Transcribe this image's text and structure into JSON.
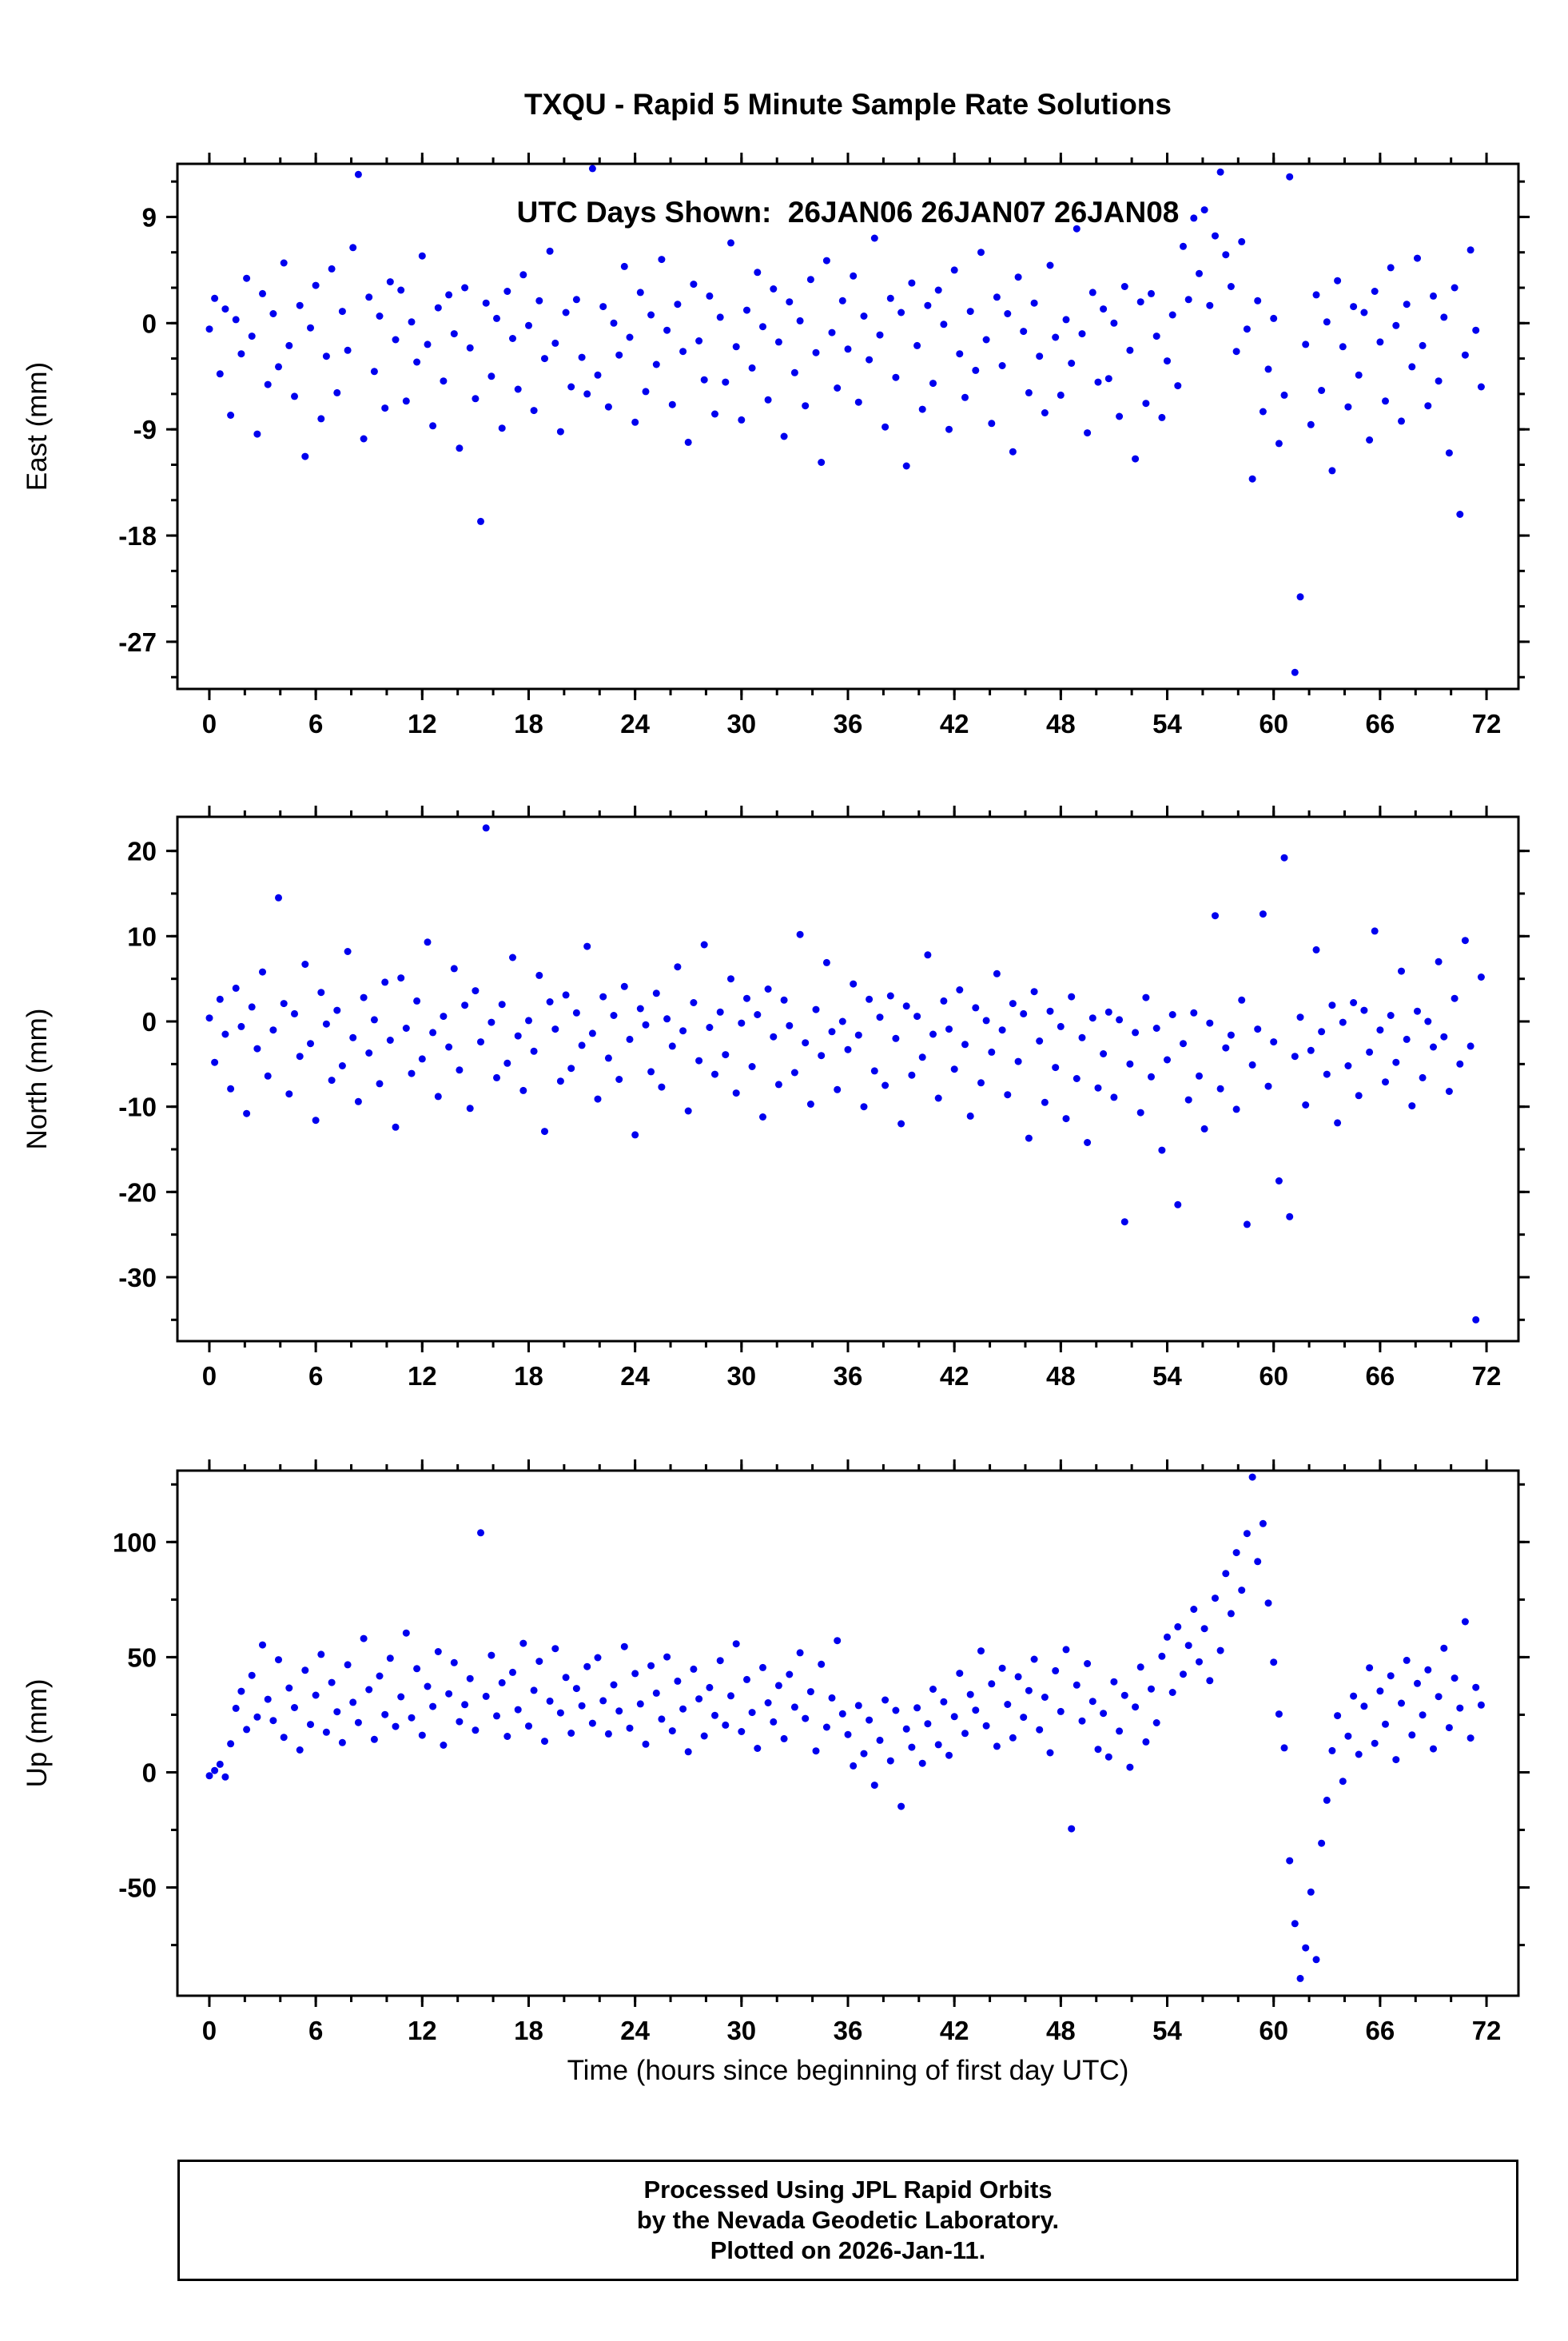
{
  "title": {
    "line1": "TXQU - Rapid 5 Minute Sample Rate Solutions",
    "line2": "UTC Days Shown:  26JAN06 26JAN07 26JAN08"
  },
  "footer": {
    "line1": "Processed Using JPL Rapid Orbits",
    "line2": "by the Nevada Geodetic Laboratory.",
    "line3": "Plotted on 2026-Jan-11."
  },
  "chart_data": {
    "type": "scatter",
    "title": "TXQU - Rapid 5 Minute Sample Rate Solutions",
    "subtitle": "UTC Days Shown:  26JAN06 26JAN07 26JAN08",
    "marker_color": "#0000ee",
    "grid": false,
    "legend": false,
    "x_axis": {
      "label": "Time (hours since beginning of first day UTC)",
      "lim": [
        -1.8,
        73.8
      ],
      "ticks": [
        0,
        6,
        12,
        18,
        24,
        30,
        36,
        42,
        48,
        54,
        60,
        66,
        72
      ],
      "minor_step": 2,
      "x_start": 0,
      "x_step": 0.3
    },
    "panels": [
      {
        "name": "east",
        "ylabel": "East (mm)",
        "lim": [
          -31,
          13.5
        ],
        "ticks": [
          9,
          0,
          -9,
          -18,
          -27
        ],
        "minor_step": 3,
        "y": [
          -0.5,
          2.1,
          -4.3,
          1.2,
          -7.8,
          0.3,
          -2.6,
          3.8,
          -1.1,
          -9.4,
          2.5,
          -5.2,
          0.8,
          -3.7,
          5.1,
          -1.9,
          -6.2,
          1.5,
          -11.3,
          -0.4,
          3.2,
          -8.1,
          -2.8,
          4.6,
          -5.9,
          1.0,
          -2.3,
          6.4,
          12.6,
          -9.8,
          2.2,
          -4.1,
          0.6,
          -7.2,
          3.5,
          -1.4,
          2.8,
          -6.6,
          0.1,
          -3.3,
          5.7,
          -1.8,
          -8.7,
          1.3,
          -4.9,
          2.4,
          -0.9,
          -10.6,
          3.0,
          -2.1,
          -6.4,
          -16.8,
          1.7,
          -4.5,
          0.4,
          -8.9,
          2.7,
          -1.3,
          -5.6,
          4.1,
          -0.2,
          -7.4,
          1.9,
          -3.0,
          6.1,
          -1.7,
          -9.2,
          0.9,
          -5.4,
          2.0,
          -2.9,
          -6.0,
          13.1,
          -4.4,
          1.4,
          -7.1,
          0.0,
          -2.7,
          4.8,
          -1.2,
          -8.4,
          2.6,
          -5.8,
          0.7,
          -3.5,
          5.4,
          -0.6,
          -6.9,
          1.6,
          -2.4,
          -10.1,
          3.3,
          -1.5,
          -4.8,
          2.3,
          -7.7,
          0.5,
          -5.0,
          6.8,
          -2.0,
          -8.2,
          1.1,
          -3.8,
          4.3,
          -0.3,
          -6.5,
          2.9,
          -1.6,
          -9.6,
          1.8,
          -4.2,
          0.2,
          -7.0,
          3.7,
          -2.5,
          -11.8,
          5.3,
          -0.8,
          -5.5,
          1.9,
          -2.2,
          4.0,
          -6.7,
          0.6,
          -3.1,
          7.2,
          -1.0,
          -8.8,
          2.1,
          -4.6,
          0.9,
          -12.1,
          3.4,
          -1.9,
          -7.3,
          1.5,
          -5.1,
          2.8,
          -0.1,
          -9.0,
          4.5,
          -2.6,
          -6.3,
          1.0,
          -4.0,
          6.0,
          -1.4,
          -8.5,
          2.2,
          -3.6,
          0.8,
          -10.9,
          3.9,
          -0.7,
          -5.9,
          1.7,
          -2.8,
          -7.6,
          4.9,
          -1.2,
          -6.1,
          0.3,
          -3.4,
          8.0,
          -0.9,
          -9.3,
          2.6,
          -5.0,
          1.2,
          -4.7,
          0.0,
          -7.9,
          3.1,
          -2.3,
          -11.5,
          1.8,
          -6.8,
          2.5,
          -1.1,
          -8.0,
          -3.2,
          0.7,
          -5.3,
          6.5,
          2.0,
          8.9,
          4.2,
          9.6,
          1.5,
          7.4,
          12.8,
          5.8,
          3.1,
          -2.4,
          6.9,
          -0.5,
          -13.2,
          1.9,
          -7.5,
          -3.9,
          0.4,
          -10.2,
          -6.1,
          12.4,
          -29.6,
          -23.2,
          -1.8,
          -8.6,
          2.4,
          -5.7,
          0.1,
          -12.5,
          3.6,
          -2.0,
          -7.1,
          1.4,
          -4.4,
          0.9,
          -9.9,
          2.7,
          -1.6,
          -6.6,
          4.7,
          -0.2,
          -8.3,
          1.6,
          -3.7,
          5.5,
          -1.9,
          -7.0,
          2.3,
          -4.9,
          0.5,
          -11.0,
          3.0,
          -16.2,
          -2.7,
          6.2,
          -0.6,
          -5.4
        ]
      },
      {
        "name": "north",
        "ylabel": "North (mm)",
        "lim": [
          -37.5,
          24
        ],
        "ticks": [
          20,
          10,
          0,
          -10,
          -20,
          -30
        ],
        "minor_step": 5,
        "y": [
          0.4,
          -4.8,
          2.6,
          -1.5,
          -7.9,
          3.9,
          -0.6,
          -10.8,
          1.7,
          -3.2,
          5.8,
          -6.4,
          -1.0,
          14.5,
          2.1,
          -8.5,
          0.9,
          -4.1,
          6.7,
          -2.6,
          -11.6,
          3.4,
          -0.3,
          -6.9,
          1.3,
          -5.2,
          8.2,
          -1.9,
          -9.4,
          2.8,
          -3.7,
          0.2,
          -7.3,
          4.6,
          -2.2,
          -12.4,
          5.1,
          -0.8,
          -6.1,
          2.4,
          -4.4,
          9.3,
          -1.3,
          -8.8,
          0.6,
          -3.0,
          6.2,
          -5.7,
          1.9,
          -10.2,
          3.6,
          -2.4,
          22.7,
          -0.1,
          -6.6,
          2.0,
          -4.9,
          7.5,
          -1.7,
          -8.1,
          0.1,
          -3.5,
          5.4,
          -12.9,
          2.3,
          -0.9,
          -7.0,
          3.1,
          -5.5,
          1.0,
          -2.8,
          8.8,
          -1.4,
          -9.1,
          2.9,
          -4.3,
          0.7,
          -6.8,
          4.1,
          -2.1,
          -13.3,
          1.5,
          -0.4,
          -5.9,
          3.3,
          -7.7,
          0.3,
          -2.9,
          6.4,
          -1.1,
          -10.5,
          2.2,
          -4.6,
          9.0,
          -0.7,
          -6.2,
          1.1,
          -3.9,
          5.0,
          -8.4,
          -0.2,
          2.7,
          -5.3,
          0.8,
          -11.2,
          3.8,
          -1.8,
          -7.4,
          2.5,
          -0.5,
          -6.0,
          10.2,
          -2.5,
          -9.7,
          1.4,
          -4.0,
          6.9,
          -1.2,
          -8.0,
          0.0,
          -3.3,
          4.4,
          -1.6,
          -10.0,
          2.6,
          -5.8,
          0.5,
          -7.5,
          3.0,
          -2.0,
          -12.0,
          1.8,
          -6.3,
          0.6,
          -4.2,
          7.8,
          -1.5,
          -9.0,
          2.4,
          -0.9,
          -5.6,
          3.7,
          -2.7,
          -11.1,
          1.6,
          -7.2,
          0.1,
          -3.6,
          5.6,
          -1.0,
          -8.6,
          2.1,
          -4.7,
          0.9,
          -13.7,
          3.5,
          -2.3,
          -9.5,
          1.2,
          -5.4,
          -0.6,
          -11.4,
          2.9,
          -6.7,
          -1.9,
          -14.2,
          0.4,
          -7.8,
          -3.8,
          1.1,
          -8.9,
          0.2,
          -23.5,
          -5.0,
          -1.3,
          -10.7,
          2.8,
          -6.5,
          -0.8,
          -15.1,
          -4.5,
          0.8,
          -21.5,
          -2.6,
          -9.2,
          1.0,
          -6.4,
          -12.6,
          -0.2,
          12.4,
          -7.9,
          -3.1,
          -1.6,
          -10.3,
          2.5,
          -23.8,
          -5.1,
          -0.9,
          12.6,
          -7.6,
          -2.4,
          -18.7,
          19.2,
          -22.9,
          -4.1,
          0.5,
          -9.8,
          -3.4,
          8.4,
          -1.2,
          -6.2,
          1.9,
          -11.9,
          -0.1,
          -5.2,
          2.2,
          -8.7,
          1.3,
          -3.6,
          10.6,
          -1.0,
          -7.1,
          0.7,
          -4.8,
          5.9,
          -2.1,
          -9.9,
          1.2,
          -6.6,
          0.0,
          -3.0,
          7.0,
          -1.8,
          -8.2,
          2.7,
          -5.0,
          9.5,
          -2.9,
          -35.0,
          5.2
        ]
      },
      {
        "name": "up",
        "ylabel": "Up (mm)",
        "lim": [
          -97,
          131
        ],
        "ticks": [
          100,
          50,
          0,
          -50
        ],
        "minor_step": 25,
        "y": [
          -1.5,
          0.8,
          3.5,
          -2.0,
          12.4,
          27.8,
          35.2,
          18.6,
          42.1,
          24.0,
          55.3,
          31.7,
          22.5,
          48.9,
          15.2,
          36.6,
          28.1,
          9.7,
          44.3,
          20.8,
          33.5,
          51.2,
          17.4,
          39.0,
          26.3,
          12.9,
          46.7,
          30.4,
          21.6,
          58.1,
          35.9,
          14.3,
          41.8,
          25.1,
          49.5,
          19.9,
          32.8,
          60.5,
          23.7,
          45.0,
          16.1,
          37.3,
          28.6,
          52.4,
          11.8,
          34.1,
          47.6,
          22.0,
          29.4,
          40.7,
          18.3,
          104.0,
          33.0,
          50.8,
          24.5,
          38.9,
          15.6,
          43.4,
          27.2,
          56.0,
          20.1,
          35.6,
          48.2,
          13.5,
          30.9,
          53.7,
          25.8,
          41.2,
          17.0,
          36.4,
          28.9,
          45.9,
          21.3,
          49.8,
          31.1,
          16.7,
          38.0,
          26.6,
          54.6,
          19.2,
          42.9,
          29.7,
          12.2,
          46.3,
          34.4,
          23.1,
          50.1,
          18.0,
          39.6,
          27.5,
          8.9,
          44.8,
          31.9,
          15.8,
          36.8,
          24.7,
          48.5,
          20.5,
          33.2,
          55.8,
          17.7,
          40.3,
          26.0,
          10.4,
          45.5,
          30.2,
          21.9,
          37.7,
          14.6,
          42.5,
          28.3,
          51.9,
          23.4,
          35.0,
          9.3,
          46.9,
          19.6,
          32.3,
          57.2,
          25.4,
          16.4,
          2.8,
          29.0,
          8.1,
          22.7,
          -5.6,
          13.9,
          31.4,
          5.0,
          26.9,
          -14.8,
          18.8,
          10.9,
          28.0,
          3.9,
          21.1,
          36.1,
          12.0,
          30.6,
          7.4,
          24.2,
          43.0,
          16.9,
          33.8,
          27.0,
          52.7,
          20.2,
          38.4,
          11.3,
          45.2,
          29.5,
          15.0,
          41.5,
          23.9,
          35.5,
          49.1,
          18.5,
          32.6,
          8.5,
          44.1,
          26.4,
          53.3,
          -24.5,
          37.9,
          22.3,
          47.2,
          30.8,
          10.0,
          25.6,
          6.7,
          39.3,
          17.9,
          33.4,
          2.2,
          28.4,
          45.7,
          13.2,
          36.2,
          21.5,
          50.4,
          58.7,
          34.7,
          63.2,
          42.6,
          55.1,
          70.8,
          48.0,
          62.4,
          39.8,
          75.6,
          52.9,
          86.3,
          68.9,
          95.4,
          79.1,
          103.7,
          128.2,
          91.5,
          108.0,
          73.5,
          47.8,
          25.3,
          10.6,
          -38.4,
          -65.7,
          -89.5,
          -76.2,
          -52.0,
          -81.3,
          -30.8,
          -12.1,
          9.4,
          24.6,
          -3.9,
          15.7,
          33.1,
          7.8,
          28.7,
          45.4,
          12.6,
          35.3,
          20.9,
          41.9,
          5.5,
          30.0,
          48.6,
          16.2,
          38.6,
          24.9,
          44.5,
          10.2,
          32.9,
          53.9,
          19.4,
          40.9,
          27.9,
          65.4,
          14.9,
          36.9,
          29.2
        ]
      }
    ]
  }
}
